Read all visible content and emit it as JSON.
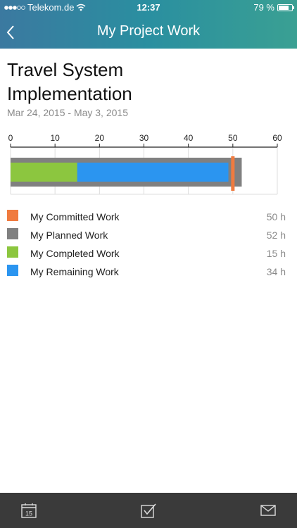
{
  "status_bar": {
    "carrier": "Telekom.de",
    "time": "12:37",
    "battery": "79 %",
    "battery_level": 0.79
  },
  "nav": {
    "title": "My Project Work",
    "back_icon": "chevron-left-icon"
  },
  "project": {
    "name": "Travel System Implementation",
    "date_range": "Mar 24, 2015 - May 3, 2015"
  },
  "chart_data": {
    "type": "bar",
    "x_ticks": [
      "0",
      "10",
      "20",
      "30",
      "40",
      "50",
      "60"
    ],
    "xlim": [
      0,
      60
    ],
    "grid": true,
    "planned": 52,
    "completed": 15,
    "remaining": 34,
    "committed": 50
  },
  "legend": [
    {
      "label": "My Committed Work",
      "value": "50 h",
      "color": "#f07b3f"
    },
    {
      "label": "My Planned Work",
      "value": "52 h",
      "color": "#808080"
    },
    {
      "label": "My Completed Work",
      "value": "15 h",
      "color": "#8cc63f"
    },
    {
      "label": "My Remaining Work",
      "value": "34 h",
      "color": "#2b95f0"
    }
  ],
  "tabbar": {
    "icons": [
      "calendar-icon",
      "checkbox-icon",
      "mail-icon"
    ],
    "calendar_day": "15"
  }
}
